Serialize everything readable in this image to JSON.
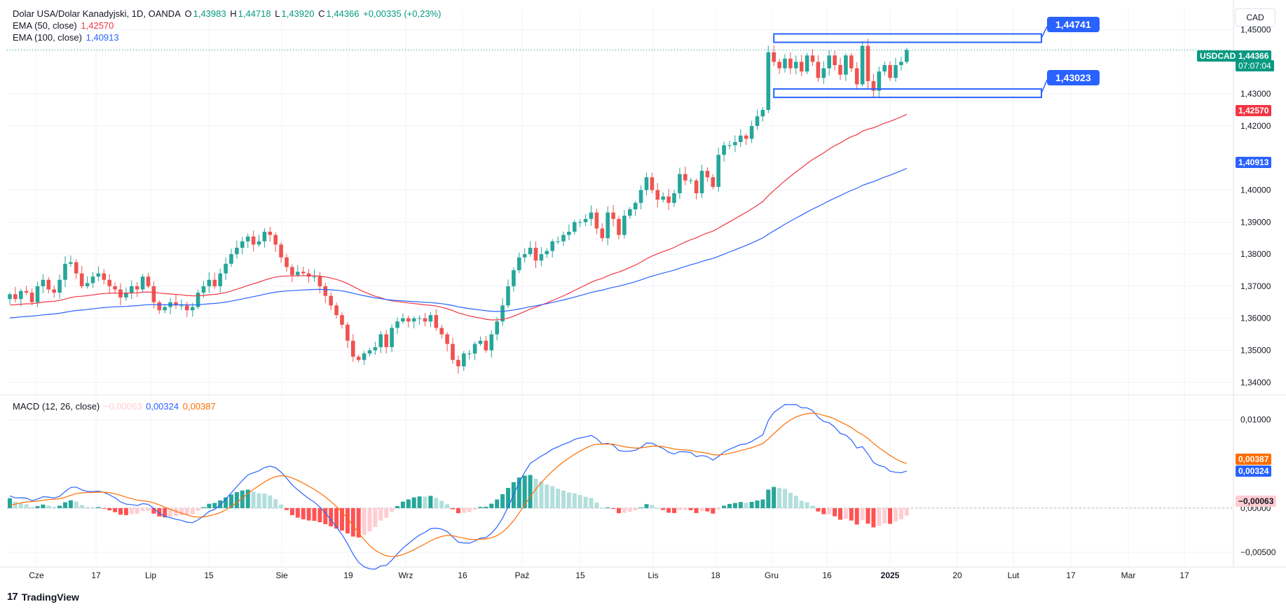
{
  "header": {
    "title": "Dolar USA/Dolar Kanadyjski, 1D, OANDA",
    "open_label": "O",
    "open": "1,43983",
    "high_label": "H",
    "high": "1,44718",
    "low_label": "L",
    "low": "1,43920",
    "close_label": "C",
    "close": "1,44366",
    "change": "+0,00335 (+0,23%)"
  },
  "indicators": {
    "ema50_label": "EMA (50, close)",
    "ema50_value": "1,42570",
    "ema100_label": "EMA (100, close)",
    "ema100_value": "1,40913",
    "macd_label": "MACD (12, 26, close)",
    "macd_hist": "−0,00063",
    "macd_line": "0,00324",
    "macd_signal": "0,00387"
  },
  "currency_button": "CAD",
  "price_axis_ticks": [
    "1,45000",
    "1,43000",
    "1,42000",
    "1,40000",
    "1,39000",
    "1,38000",
    "1,37000",
    "1,36000",
    "1,35000",
    "1,34000"
  ],
  "macd_axis_ticks": [
    "0,01000",
    "0,00000",
    "−0,00500"
  ],
  "time_axis_labels": [
    "Cze",
    "17",
    "Lip",
    "15",
    "Sie",
    "19",
    "Wrz",
    "16",
    "Paź",
    "15",
    "Lis",
    "18",
    "Gru",
    "16",
    "2025",
    "20",
    "Lut",
    "17",
    "Mar",
    "17"
  ],
  "tags": {
    "symbol": "USDCAD",
    "last_price": "1,44366",
    "countdown": "07:07:04",
    "ema50": "1,42570",
    "ema100": "1,40913",
    "macd_signal": "0,00387",
    "macd_line": "0,00324",
    "macd_hist": "−0,00063"
  },
  "annotations": {
    "upper_level": "1,44741",
    "lower_level": "1,43023"
  },
  "footer": {
    "brand": "TradingView"
  },
  "colors": {
    "up": "#26a69a",
    "down": "#ef5350",
    "ema50": "#f23645",
    "ema100": "#2962ff",
    "macd_line": "#2962ff",
    "signal_line": "#ff6d00",
    "hist_up": "#26a69a",
    "hist_up_light": "#b2dfdb",
    "hist_down": "#ff5252",
    "hist_down_light": "#ffcdd2",
    "annotation": "#2962ff",
    "last_price": "#089981"
  },
  "chart_data": {
    "type": "candlestick",
    "ylim": [
      1.337,
      1.4545
    ],
    "closes": [
      1.3675,
      1.366,
      1.3685,
      1.368,
      1.365,
      1.37,
      1.372,
      1.369,
      1.368,
      1.372,
      1.377,
      1.3775,
      1.374,
      1.37,
      1.371,
      1.373,
      1.374,
      1.372,
      1.37,
      1.369,
      1.3665,
      1.368,
      1.37,
      1.369,
      1.373,
      1.37,
      1.365,
      1.3625,
      1.3635,
      1.365,
      1.364,
      1.364,
      1.3625,
      1.3635,
      1.368,
      1.37,
      1.372,
      1.37,
      1.374,
      1.377,
      1.38,
      1.382,
      1.384,
      1.3855,
      1.383,
      1.384,
      1.387,
      1.386,
      1.383,
      1.379,
      1.376,
      1.3735,
      1.3745,
      1.374,
      1.373,
      1.373,
      1.37,
      1.367,
      1.364,
      1.361,
      1.358,
      1.353,
      1.348,
      1.347,
      1.349,
      1.35,
      1.351,
      1.355,
      1.351,
      1.357,
      1.359,
      1.36,
      1.359,
      1.36,
      1.36,
      1.359,
      1.361,
      1.357,
      1.355,
      1.352,
      1.347,
      1.345,
      1.349,
      1.349,
      1.352,
      1.353,
      1.35,
      1.355,
      1.359,
      1.364,
      1.37,
      1.375,
      1.379,
      1.38,
      1.382,
      1.378,
      1.38,
      1.381,
      1.384,
      1.384,
      1.386,
      1.387,
      1.39,
      1.39,
      1.391,
      1.393,
      1.388,
      1.385,
      1.393,
      1.391,
      1.386,
      1.392,
      1.394,
      1.396,
      1.4,
      1.404,
      1.4,
      1.397,
      1.398,
      1.396,
      1.399,
      1.405,
      1.403,
      1.403,
      1.399,
      1.406,
      1.404,
      1.401,
      1.411,
      1.414,
      1.414,
      1.415,
      1.417,
      1.416,
      1.42,
      1.423,
      1.425,
      1.443,
      1.44,
      1.438,
      1.441,
      1.438,
      1.44,
      1.437,
      1.442,
      1.44,
      1.435,
      1.438,
      1.442,
      1.439,
      1.436,
      1.442,
      1.438,
      1.433,
      1.445,
      1.434,
      1.431,
      1.437,
      1.439,
      1.435,
      1.439,
      1.44,
      1.4437
    ],
    "ema50_last": 1.4257,
    "ema100_last": 1.40913,
    "upper_level": 1.44741,
    "lower_level": 1.43023,
    "macd_ylim": [
      -0.0065,
      0.0125
    ],
    "macd_last": 0.00324,
    "signal_last": 0.00387,
    "hist_last": -0.00063
  }
}
